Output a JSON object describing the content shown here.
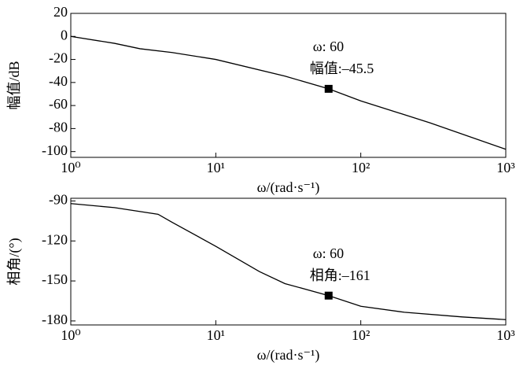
{
  "chart_data": [
    {
      "type": "line",
      "xscale": "log",
      "xlabel": "ω/(rad·s⁻¹)",
      "ylabel": "幅值/dB",
      "x": [
        1,
        2,
        3,
        5,
        10,
        30,
        60,
        100,
        300,
        1000
      ],
      "values": [
        0,
        -6,
        -10.7,
        -14,
        -20,
        -34.5,
        -45.5,
        -56,
        -75,
        -98
      ],
      "color": "#000000",
      "xlim": [
        1,
        1000
      ],
      "xticks": [
        {
          "value": 1,
          "label": "10⁰"
        },
        {
          "value": 10,
          "label": "10¹"
        },
        {
          "value": 100,
          "label": "10²"
        },
        {
          "value": 1000,
          "label": "10³"
        }
      ],
      "ylim": [
        -105,
        20
      ],
      "yticks": [
        20,
        0,
        -20,
        -40,
        -60,
        -80,
        -100
      ],
      "annotations": [
        {
          "x": 60,
          "y": -45.5,
          "text": [
            "ω: 60",
            "幅值:–45.5"
          ]
        }
      ]
    },
    {
      "type": "line",
      "xscale": "log",
      "xlabel": "ω/(rad·s⁻¹)",
      "ylabel": "相角/(°)",
      "x": [
        1,
        2,
        4,
        5,
        10,
        20,
        30,
        60,
        100,
        200,
        500,
        1000
      ],
      "values": [
        -92,
        -95,
        -100,
        -106,
        -124,
        -143,
        -152,
        -161,
        -169,
        -173.5,
        -177,
        -179
      ],
      "color": "#000000",
      "xlim": [
        1,
        1000
      ],
      "xticks": [
        {
          "value": 1,
          "label": "10⁰"
        },
        {
          "value": 10,
          "label": "10¹"
        },
        {
          "value": 100,
          "label": "10²"
        },
        {
          "value": 1000,
          "label": "10³"
        }
      ],
      "ylim": [
        -183,
        -88
      ],
      "yticks": [
        -90,
        -120,
        -150,
        -180
      ],
      "annotations": [
        {
          "x": 60,
          "y": -161,
          "text": [
            "ω: 60",
            "相角:–161"
          ]
        }
      ]
    }
  ]
}
